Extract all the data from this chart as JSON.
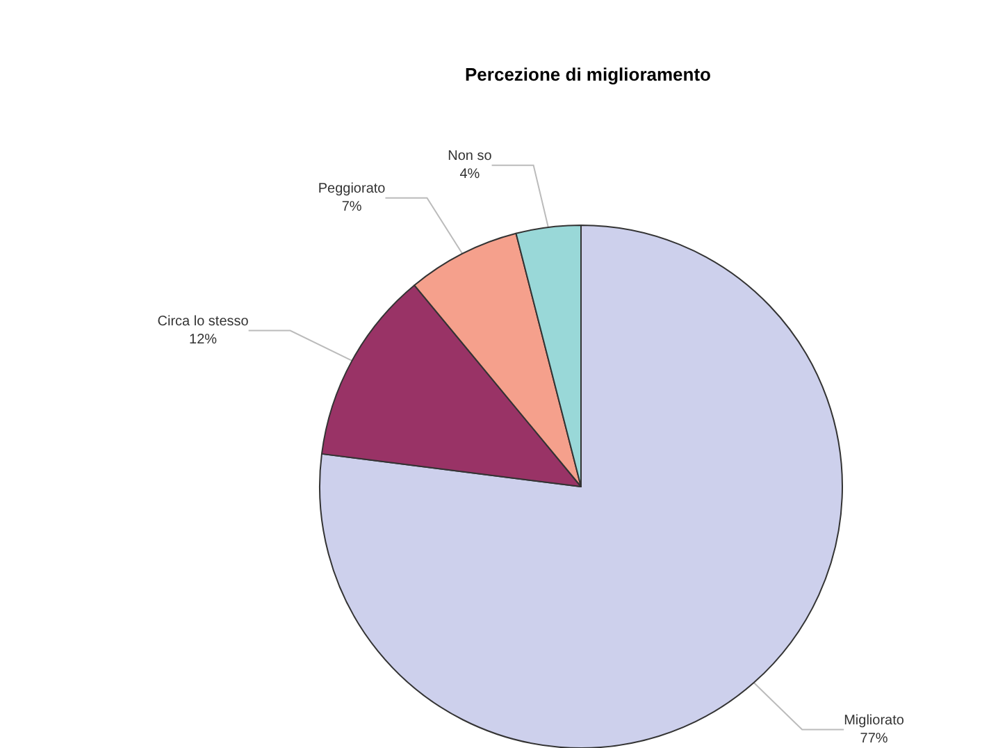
{
  "chart_data": {
    "type": "pie",
    "title": "Percezione di miglioramento",
    "categories": [
      "Migliorato",
      "Circa lo stesso",
      "Peggiorato",
      "Non so"
    ],
    "values": [
      77,
      12,
      7,
      4
    ],
    "value_labels": [
      "77%",
      "12%",
      "7%",
      "4%"
    ],
    "colors": [
      "#cdd0ec",
      "#993366",
      "#f5a08c",
      "#99d8d8"
    ]
  }
}
